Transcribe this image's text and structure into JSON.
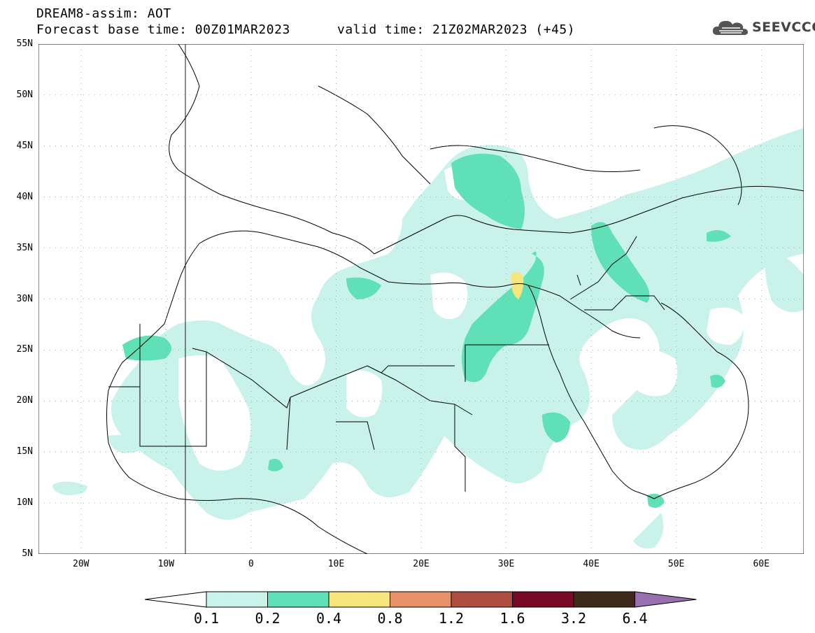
{
  "title": {
    "line1": "DREAM8-assim: AOT",
    "line2": "Forecast base time: 00Z01MAR2023",
    "valid": "valid time: 21Z02MAR2023 (+45)"
  },
  "logo": {
    "text": "SEEVCCC",
    "icon": "cloud-logo-icon",
    "color": "#444444"
  },
  "map": {
    "lat_range": [
      5,
      55
    ],
    "lon_range": [
      -25,
      65
    ],
    "lat_labels": [
      {
        "lat": 55,
        "text": "55N"
      },
      {
        "lat": 50,
        "text": "50N"
      },
      {
        "lat": 45,
        "text": "45N"
      },
      {
        "lat": 40,
        "text": "40N"
      },
      {
        "lat": 35,
        "text": "35N"
      },
      {
        "lat": 30,
        "text": "30N"
      },
      {
        "lat": 25,
        "text": "25N"
      },
      {
        "lat": 20,
        "text": "20N"
      },
      {
        "lat": 15,
        "text": "15N"
      },
      {
        "lat": 10,
        "text": "10N"
      },
      {
        "lat": 5,
        "text": "5N"
      }
    ],
    "lon_labels": [
      {
        "lon": -20,
        "text": "20W"
      },
      {
        "lon": -10,
        "text": "10W"
      },
      {
        "lon": 0,
        "text": "0"
      },
      {
        "lon": 10,
        "text": "10E"
      },
      {
        "lon": 20,
        "text": "20E"
      },
      {
        "lon": 30,
        "text": "30E"
      },
      {
        "lon": 40,
        "text": "40E"
      },
      {
        "lon": 50,
        "text": "50E"
      },
      {
        "lon": 60,
        "text": "60E"
      }
    ]
  },
  "colorbar": {
    "levels": [
      "0.1",
      "0.2",
      "0.4",
      "0.8",
      "1.2",
      "1.6",
      "3.2",
      "6.4"
    ],
    "colors": [
      "#ffffff",
      "#c8f2ea",
      "#5fe0b6",
      "#f5e57a",
      "#e8906a",
      "#ae4e40",
      "#760a26",
      "#3e2a18",
      "#9a6fb0"
    ]
  }
}
